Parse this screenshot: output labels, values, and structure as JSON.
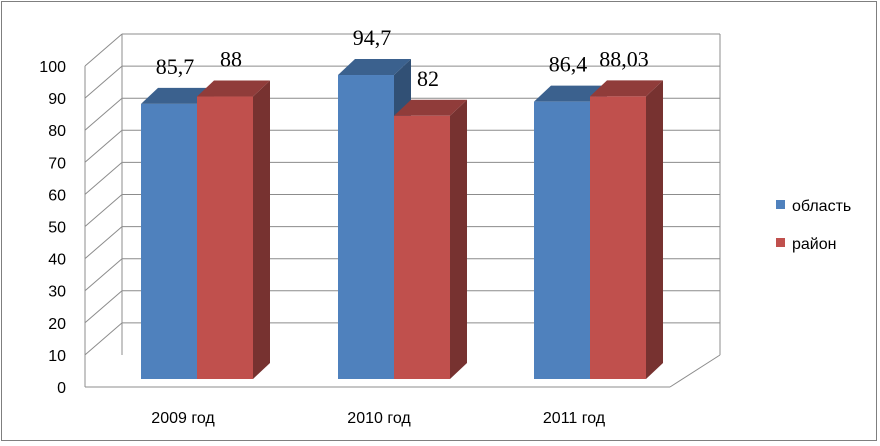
{
  "chart_data": {
    "type": "bar",
    "categories": [
      "2009 год",
      "2010 год",
      "2011 год"
    ],
    "series": [
      {
        "name": "область",
        "values": [
          85.7,
          94.7,
          86.4
        ],
        "labels": [
          "85,7",
          "94,7",
          "86,4"
        ],
        "color": "#4f81bd"
      },
      {
        "name": "район",
        "values": [
          88,
          82,
          88.03
        ],
        "labels": [
          "88",
          "82",
          "88,03"
        ],
        "color": "#c0504d"
      }
    ],
    "y_ticks": [
      "0",
      "10",
      "20",
      "30",
      "40",
      "50",
      "60",
      "70",
      "80",
      "90",
      "100"
    ],
    "ylim": [
      0,
      100
    ],
    "grid": true,
    "three_d": true,
    "legend_position": "right"
  }
}
